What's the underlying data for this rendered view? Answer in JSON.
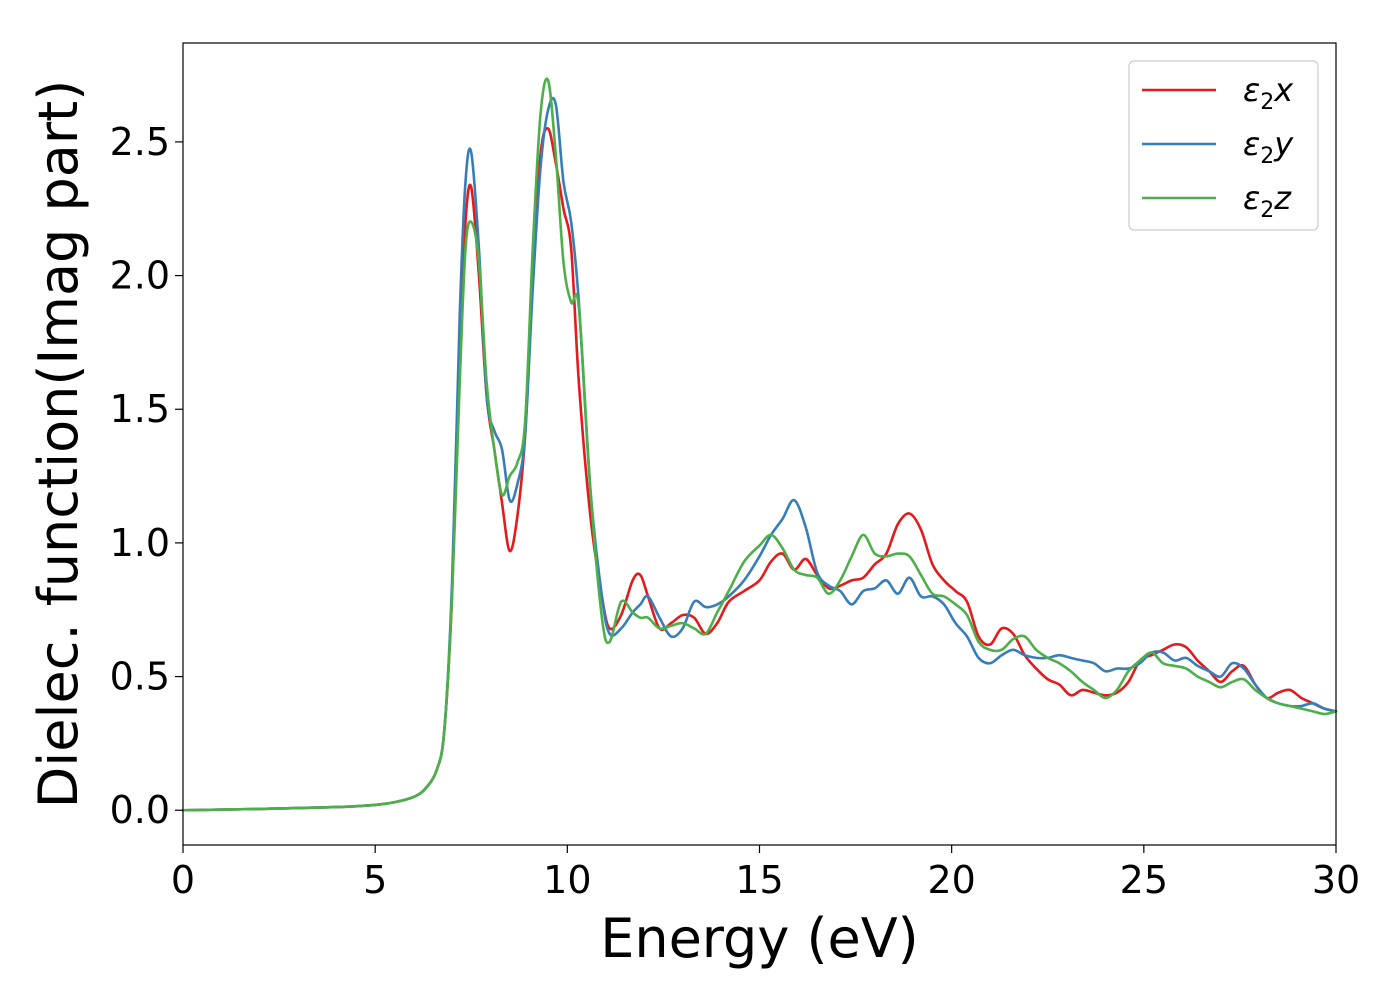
{
  "chart_data": {
    "type": "line",
    "xlabel": "Energy (eV)",
    "ylabel": "Dielec. function(Imag part)",
    "xlim": [
      0,
      30
    ],
    "ylim": [
      -0.13,
      2.87
    ],
    "xticks": [
      0,
      5,
      10,
      15,
      20,
      25,
      30
    ],
    "yticks": [
      0.0,
      0.5,
      1.0,
      1.5,
      2.0,
      2.5
    ],
    "xtick_labels": [
      "0",
      "5",
      "10",
      "15",
      "20",
      "25",
      "30"
    ],
    "ytick_labels": [
      "0.0",
      "0.5",
      "1.0",
      "1.5",
      "2.0",
      "2.5"
    ],
    "grid": false,
    "legend_position": "top-right",
    "series": [
      {
        "name": "ε2x",
        "symbol": "ε",
        "subscript": "2",
        "suffix": "x",
        "color": "#e41a1c",
        "x": [
          0,
          2,
          4,
          5,
          5.5,
          6,
          6.3,
          6.6,
          6.8,
          7.0,
          7.2,
          7.35,
          7.5,
          7.7,
          7.9,
          8.1,
          8.3,
          8.5,
          8.7,
          8.9,
          9.1,
          9.3,
          9.5,
          9.7,
          9.9,
          10.1,
          10.3,
          10.6,
          10.9,
          11.1,
          11.4,
          11.7,
          11.9,
          12.1,
          12.4,
          12.7,
          13.0,
          13.3,
          13.6,
          13.9,
          14.2,
          14.6,
          15.0,
          15.3,
          15.6,
          15.9,
          16.2,
          16.5,
          16.8,
          17.1,
          17.4,
          17.7,
          18.0,
          18.3,
          18.6,
          18.9,
          19.2,
          19.5,
          19.8,
          20.1,
          20.4,
          20.7,
          21.0,
          21.3,
          21.6,
          21.9,
          22.2,
          22.5,
          22.8,
          23.1,
          23.4,
          23.7,
          24.0,
          24.3,
          24.6,
          24.9,
          25.2,
          25.5,
          25.8,
          26.1,
          26.4,
          26.7,
          27.0,
          27.3,
          27.6,
          27.9,
          28.2,
          28.5,
          28.8,
          29.1,
          29.4,
          29.7,
          30
        ],
        "y": [
          0.0,
          0.005,
          0.012,
          0.02,
          0.03,
          0.05,
          0.08,
          0.15,
          0.3,
          0.8,
          1.7,
          2.2,
          2.33,
          2.0,
          1.55,
          1.35,
          1.15,
          0.97,
          1.1,
          1.4,
          2.0,
          2.45,
          2.55,
          2.42,
          2.25,
          2.1,
          1.6,
          1.1,
          0.8,
          0.68,
          0.73,
          0.86,
          0.88,
          0.8,
          0.68,
          0.7,
          0.73,
          0.72,
          0.66,
          0.7,
          0.78,
          0.82,
          0.86,
          0.93,
          0.96,
          0.9,
          0.94,
          0.88,
          0.83,
          0.84,
          0.86,
          0.87,
          0.92,
          0.96,
          1.07,
          1.11,
          1.05,
          0.92,
          0.86,
          0.82,
          0.78,
          0.65,
          0.62,
          0.68,
          0.66,
          0.58,
          0.53,
          0.49,
          0.47,
          0.43,
          0.45,
          0.44,
          0.43,
          0.44,
          0.48,
          0.56,
          0.58,
          0.6,
          0.62,
          0.61,
          0.56,
          0.52,
          0.48,
          0.52,
          0.54,
          0.47,
          0.42,
          0.44,
          0.45,
          0.42,
          0.4,
          0.38,
          0.37
        ]
      },
      {
        "name": "ε2y",
        "symbol": "ε",
        "subscript": "2",
        "suffix": "y",
        "color": "#377eb8",
        "x": [
          0,
          2,
          4,
          5,
          5.5,
          6,
          6.3,
          6.6,
          6.8,
          7.0,
          7.2,
          7.35,
          7.5,
          7.7,
          7.9,
          8.1,
          8.3,
          8.5,
          8.7,
          8.9,
          9.1,
          9.3,
          9.5,
          9.7,
          9.9,
          10.1,
          10.3,
          10.6,
          10.9,
          11.1,
          11.4,
          11.7,
          11.9,
          12.1,
          12.4,
          12.7,
          13.0,
          13.3,
          13.6,
          13.9,
          14.2,
          14.6,
          15.0,
          15.3,
          15.6,
          15.9,
          16.2,
          16.5,
          16.8,
          17.1,
          17.4,
          17.7,
          18.0,
          18.3,
          18.6,
          18.9,
          19.2,
          19.5,
          19.8,
          20.1,
          20.4,
          20.7,
          21.0,
          21.3,
          21.6,
          21.9,
          22.2,
          22.5,
          22.8,
          23.1,
          23.4,
          23.7,
          24.0,
          24.3,
          24.6,
          24.9,
          25.2,
          25.5,
          25.8,
          26.1,
          26.4,
          26.7,
          27.0,
          27.3,
          27.6,
          27.9,
          28.2,
          28.5,
          28.8,
          29.1,
          29.4,
          29.7,
          30
        ],
        "y": [
          0.0,
          0.005,
          0.012,
          0.02,
          0.03,
          0.05,
          0.08,
          0.15,
          0.3,
          0.85,
          1.85,
          2.35,
          2.46,
          2.1,
          1.55,
          1.42,
          1.35,
          1.16,
          1.22,
          1.4,
          1.95,
          2.4,
          2.62,
          2.64,
          2.35,
          2.2,
          1.9,
          1.2,
          0.8,
          0.66,
          0.68,
          0.74,
          0.77,
          0.8,
          0.72,
          0.65,
          0.68,
          0.78,
          0.76,
          0.77,
          0.8,
          0.86,
          0.95,
          1.03,
          1.09,
          1.16,
          1.06,
          0.89,
          0.84,
          0.82,
          0.77,
          0.82,
          0.83,
          0.86,
          0.81,
          0.87,
          0.8,
          0.8,
          0.77,
          0.7,
          0.65,
          0.57,
          0.55,
          0.58,
          0.6,
          0.58,
          0.57,
          0.57,
          0.58,
          0.57,
          0.56,
          0.55,
          0.52,
          0.53,
          0.53,
          0.55,
          0.59,
          0.59,
          0.56,
          0.57,
          0.54,
          0.52,
          0.5,
          0.55,
          0.53,
          0.47,
          0.42,
          0.4,
          0.39,
          0.39,
          0.4,
          0.38,
          0.37
        ]
      },
      {
        "name": "ε2z",
        "symbol": "ε",
        "subscript": "2",
        "suffix": "z",
        "color": "#4daf4a",
        "x": [
          0,
          2,
          4,
          5,
          5.5,
          6,
          6.3,
          6.6,
          6.8,
          7.0,
          7.2,
          7.35,
          7.5,
          7.7,
          7.9,
          8.1,
          8.3,
          8.5,
          8.7,
          8.9,
          9.1,
          9.3,
          9.5,
          9.7,
          9.9,
          10.1,
          10.3,
          10.6,
          10.9,
          11.1,
          11.4,
          11.7,
          11.9,
          12.1,
          12.4,
          12.7,
          13.0,
          13.3,
          13.6,
          13.9,
          14.2,
          14.6,
          15.0,
          15.3,
          15.6,
          15.9,
          16.2,
          16.5,
          16.8,
          17.1,
          17.4,
          17.7,
          18.0,
          18.3,
          18.6,
          18.9,
          19.2,
          19.5,
          19.8,
          20.1,
          20.4,
          20.7,
          21.0,
          21.3,
          21.6,
          21.9,
          22.2,
          22.5,
          22.8,
          23.1,
          23.4,
          23.7,
          24.0,
          24.3,
          24.6,
          24.9,
          25.2,
          25.5,
          25.8,
          26.1,
          26.4,
          26.7,
          27.0,
          27.3,
          27.6,
          27.9,
          28.2,
          28.5,
          28.8,
          29.1,
          29.4,
          29.7,
          30
        ],
        "y": [
          0.0,
          0.005,
          0.012,
          0.02,
          0.03,
          0.05,
          0.08,
          0.15,
          0.3,
          0.8,
          1.6,
          2.1,
          2.2,
          2.05,
          1.6,
          1.35,
          1.18,
          1.25,
          1.3,
          1.45,
          2.1,
          2.6,
          2.73,
          2.45,
          2.05,
          1.9,
          1.88,
          1.2,
          0.72,
          0.63,
          0.78,
          0.74,
          0.72,
          0.72,
          0.68,
          0.69,
          0.7,
          0.68,
          0.66,
          0.74,
          0.82,
          0.93,
          0.99,
          1.03,
          0.98,
          0.9,
          0.88,
          0.87,
          0.81,
          0.86,
          0.95,
          1.03,
          0.96,
          0.95,
          0.96,
          0.95,
          0.88,
          0.81,
          0.8,
          0.77,
          0.73,
          0.63,
          0.6,
          0.6,
          0.64,
          0.65,
          0.6,
          0.57,
          0.55,
          0.52,
          0.48,
          0.45,
          0.42,
          0.45,
          0.52,
          0.56,
          0.59,
          0.55,
          0.54,
          0.53,
          0.5,
          0.48,
          0.46,
          0.48,
          0.49,
          0.45,
          0.42,
          0.4,
          0.39,
          0.38,
          0.37,
          0.36,
          0.37
        ]
      }
    ]
  }
}
